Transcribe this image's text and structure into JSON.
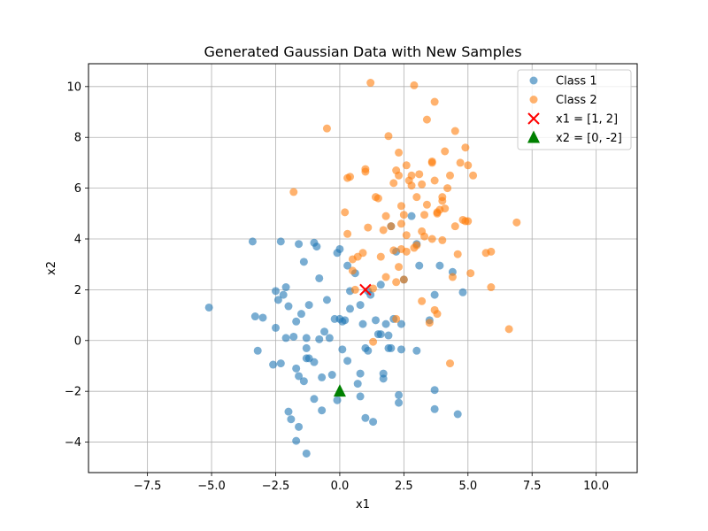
{
  "chart_data": {
    "type": "scatter",
    "title": "Generated Gaussian Data with New Samples",
    "xlabel": "x1",
    "ylabel": "x2",
    "xlim": [
      -9.8,
      11.6
    ],
    "ylim": [
      -5.2,
      10.9
    ],
    "xticks": [
      -7.5,
      -5.0,
      -2.5,
      0.0,
      2.5,
      5.0,
      7.5,
      10.0
    ],
    "xtick_labels": [
      "−7.5",
      "−5.0",
      "−2.5",
      "0.0",
      "2.5",
      "5.0",
      "7.5",
      "10.0"
    ],
    "yticks": [
      -4,
      -2,
      0,
      2,
      4,
      6,
      8,
      10
    ],
    "ytick_labels": [
      "−4",
      "−2",
      "0",
      "2",
      "4",
      "6",
      "8",
      "10"
    ],
    "grid": true,
    "legend_position": "top-right",
    "series": [
      {
        "name": "Class 1",
        "color": "#1f77b4",
        "marker": "circle",
        "points": [
          [
            -5.1,
            1.3
          ],
          [
            -3.4,
            3.9
          ],
          [
            -3.3,
            0.95
          ],
          [
            -3.2,
            -0.4
          ],
          [
            -3.0,
            0.9
          ],
          [
            -2.6,
            -0.95
          ],
          [
            -2.5,
            0.5
          ],
          [
            -2.5,
            1.95
          ],
          [
            -2.4,
            1.6
          ],
          [
            -2.3,
            3.9
          ],
          [
            -2.3,
            -0.9
          ],
          [
            -2.2,
            1.8
          ],
          [
            -2.1,
            2.1
          ],
          [
            -2.1,
            0.1
          ],
          [
            -2.0,
            -2.8
          ],
          [
            -2.0,
            1.35
          ],
          [
            -1.9,
            -3.1
          ],
          [
            -1.8,
            0.15
          ],
          [
            -1.7,
            0.75
          ],
          [
            -1.7,
            -1.1
          ],
          [
            -1.7,
            -3.95
          ],
          [
            -1.6,
            -1.4
          ],
          [
            -1.6,
            -3.4
          ],
          [
            -1.6,
            3.8
          ],
          [
            -1.5,
            1.05
          ],
          [
            -1.4,
            3.1
          ],
          [
            -1.4,
            -1.6
          ],
          [
            -1.3,
            -0.3
          ],
          [
            -1.3,
            0.1
          ],
          [
            -1.3,
            -0.7
          ],
          [
            -1.2,
            1.4
          ],
          [
            -1.2,
            -0.7
          ],
          [
            -1.3,
            -4.45
          ],
          [
            -1.0,
            -0.85
          ],
          [
            -1.0,
            -2.3
          ],
          [
            -1.0,
            3.85
          ],
          [
            -0.9,
            3.7
          ],
          [
            -0.8,
            2.45
          ],
          [
            -0.8,
            0.05
          ],
          [
            -0.7,
            -1.45
          ],
          [
            -0.7,
            -2.75
          ],
          [
            -0.6,
            0.35
          ],
          [
            -0.5,
            1.6
          ],
          [
            -0.4,
            0.1
          ],
          [
            -0.3,
            -1.35
          ],
          [
            -0.2,
            0.85
          ],
          [
            -0.1,
            3.45
          ],
          [
            -0.1,
            -2.35
          ],
          [
            0.0,
            3.6
          ],
          [
            0.0,
            0.85
          ],
          [
            0.1,
            -0.35
          ],
          [
            0.1,
            0.75
          ],
          [
            0.2,
            0.8
          ],
          [
            0.3,
            2.95
          ],
          [
            0.3,
            -0.8
          ],
          [
            0.4,
            1.95
          ],
          [
            0.4,
            1.25
          ],
          [
            0.6,
            2.65
          ],
          [
            0.7,
            -1.7
          ],
          [
            0.8,
            -2.2
          ],
          [
            0.8,
            1.4
          ],
          [
            0.8,
            -1.3
          ],
          [
            0.9,
            0.65
          ],
          [
            1.0,
            -3.05
          ],
          [
            1.0,
            -0.3
          ],
          [
            1.1,
            1.95
          ],
          [
            1.1,
            -0.4
          ],
          [
            1.2,
            1.8
          ],
          [
            1.3,
            -3.2
          ],
          [
            1.4,
            0.8
          ],
          [
            1.5,
            0.25
          ],
          [
            1.6,
            0.25
          ],
          [
            1.6,
            2.2
          ],
          [
            1.7,
            -1.3
          ],
          [
            1.7,
            -1.5
          ],
          [
            1.8,
            0.65
          ],
          [
            1.9,
            -0.3
          ],
          [
            1.9,
            0.2
          ],
          [
            2.0,
            4.5
          ],
          [
            2.0,
            -0.3
          ],
          [
            2.1,
            0.85
          ],
          [
            2.2,
            3.5
          ],
          [
            2.3,
            -2.15
          ],
          [
            2.3,
            -2.45
          ],
          [
            2.4,
            -0.35
          ],
          [
            2.4,
            0.65
          ],
          [
            2.5,
            2.4
          ],
          [
            2.8,
            4.9
          ],
          [
            3.0,
            3.8
          ],
          [
            3.0,
            -0.4
          ],
          [
            3.1,
            2.95
          ],
          [
            3.5,
            0.8
          ],
          [
            3.7,
            1.8
          ],
          [
            3.7,
            -1.95
          ],
          [
            3.7,
            -2.7
          ],
          [
            3.9,
            2.95
          ],
          [
            4.4,
            2.7
          ],
          [
            4.6,
            -2.9
          ],
          [
            4.8,
            1.9
          ]
        ]
      },
      {
        "name": "Class 2",
        "color": "#ff7f0e",
        "marker": "circle",
        "points": [
          [
            -1.8,
            5.85
          ],
          [
            -0.5,
            8.35
          ],
          [
            0.2,
            5.05
          ],
          [
            0.3,
            6.4
          ],
          [
            0.3,
            4.2
          ],
          [
            0.4,
            6.45
          ],
          [
            0.5,
            2.75
          ],
          [
            0.5,
            3.2
          ],
          [
            0.6,
            2.0
          ],
          [
            0.7,
            3.3
          ],
          [
            0.9,
            3.45
          ],
          [
            1.0,
            6.75
          ],
          [
            1.0,
            6.65
          ],
          [
            1.1,
            4.45
          ],
          [
            1.2,
            10.15
          ],
          [
            1.3,
            2.05
          ],
          [
            1.3,
            -0.05
          ],
          [
            1.4,
            5.65
          ],
          [
            1.5,
            5.6
          ],
          [
            1.6,
            3.3
          ],
          [
            1.7,
            4.35
          ],
          [
            1.8,
            4.9
          ],
          [
            1.8,
            2.5
          ],
          [
            1.9,
            8.05
          ],
          [
            2.0,
            4.5
          ],
          [
            2.1,
            6.2
          ],
          [
            2.1,
            3.55
          ],
          [
            2.2,
            2.3
          ],
          [
            2.2,
            6.7
          ],
          [
            2.2,
            0.85
          ],
          [
            2.3,
            7.4
          ],
          [
            2.3,
            6.5
          ],
          [
            2.3,
            2.9
          ],
          [
            2.4,
            4.6
          ],
          [
            2.4,
            5.3
          ],
          [
            2.4,
            3.6
          ],
          [
            2.5,
            4.95
          ],
          [
            2.5,
            2.4
          ],
          [
            2.6,
            3.5
          ],
          [
            2.6,
            4.15
          ],
          [
            2.6,
            6.9
          ],
          [
            2.7,
            6.3
          ],
          [
            2.8,
            6.5
          ],
          [
            2.8,
            6.1
          ],
          [
            2.9,
            10.05
          ],
          [
            2.9,
            3.65
          ],
          [
            3.0,
            5.65
          ],
          [
            3.0,
            3.75
          ],
          [
            3.1,
            6.55
          ],
          [
            3.2,
            4.3
          ],
          [
            3.2,
            1.55
          ],
          [
            3.2,
            6.15
          ],
          [
            3.3,
            4.1
          ],
          [
            3.3,
            4.95
          ],
          [
            3.4,
            8.7
          ],
          [
            3.4,
            5.35
          ],
          [
            3.5,
            0.7
          ],
          [
            3.6,
            7.05
          ],
          [
            3.6,
            7.0
          ],
          [
            3.6,
            4.0
          ],
          [
            3.7,
            6.3
          ],
          [
            3.7,
            9.4
          ],
          [
            3.7,
            1.2
          ],
          [
            3.8,
            1.05
          ],
          [
            3.8,
            5.05
          ],
          [
            3.8,
            5.0
          ],
          [
            3.9,
            5.15
          ],
          [
            4.0,
            3.95
          ],
          [
            4.0,
            5.5
          ],
          [
            4.0,
            5.65
          ],
          [
            4.1,
            5.2
          ],
          [
            4.1,
            7.45
          ],
          [
            4.2,
            6.0
          ],
          [
            4.3,
            -0.9
          ],
          [
            4.3,
            6.5
          ],
          [
            4.4,
            2.5
          ],
          [
            4.5,
            8.25
          ],
          [
            4.5,
            4.5
          ],
          [
            4.6,
            3.4
          ],
          [
            4.7,
            7.0
          ],
          [
            4.8,
            4.75
          ],
          [
            4.9,
            4.7
          ],
          [
            4.9,
            7.6
          ],
          [
            5.0,
            6.9
          ],
          [
            5.0,
            4.7
          ],
          [
            5.1,
            2.65
          ],
          [
            5.2,
            6.5
          ],
          [
            5.7,
            3.45
          ],
          [
            5.9,
            3.5
          ],
          [
            5.9,
            2.1
          ],
          [
            6.6,
            0.45
          ],
          [
            6.9,
            4.65
          ]
        ]
      },
      {
        "name": "x1 = [1, 2]",
        "color": "#ff0000",
        "marker": "x",
        "points": [
          [
            1,
            2
          ]
        ]
      },
      {
        "name": "x2 = [0, -2]",
        "color": "#008000",
        "marker": "triangle",
        "points": [
          [
            0,
            -2
          ]
        ]
      }
    ]
  }
}
